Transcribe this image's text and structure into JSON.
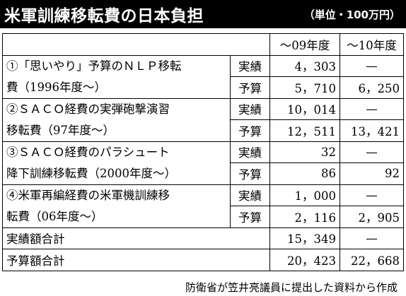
{
  "title": "米軍訓練移転費の日本負担",
  "unit": "（単位・100万円）",
  "columns": [
    "〜09年度",
    "〜10年度"
  ],
  "rows": [
    {
      "line1": "①「思いやり」予算のＮＬＰ移転",
      "line2": "費（1996年度〜）",
      "actual_label": "実績",
      "actual_09": "4，303",
      "actual_10": "—",
      "budget_label": "予算",
      "budget_09": "5，710",
      "budget_10": "6，250"
    },
    {
      "line1": "②ＳＡＣＯ経費の実弾砲撃演習",
      "line2": "移転費（97年度〜）",
      "actual_label": "実績",
      "actual_09": "10，014",
      "actual_10": "—",
      "budget_label": "予算",
      "budget_09": "12，511",
      "budget_10": "13，421"
    },
    {
      "line1": "③ＳＡＣＯ経費のパラシュート",
      "line2": "降下訓練移転費（2000年度〜）",
      "actual_label": "実績",
      "actual_09": "32",
      "actual_10": "—",
      "budget_label": "予算",
      "budget_09": "86",
      "budget_10": "92"
    },
    {
      "line1": "④米軍再編経費の米軍機訓練移",
      "line2": "転費（06年度〜）",
      "actual_label": "実績",
      "actual_09": "1，000",
      "actual_10": "—",
      "budget_label": "予算",
      "budget_09": "2，116",
      "budget_10": "2，905"
    }
  ],
  "totals": [
    {
      "label": "実績額合計",
      "v09": "15，349",
      "v10": "—"
    },
    {
      "label": "予算額合計",
      "v09": "20，423",
      "v10": "22，668"
    }
  ],
  "source": "防衛省が笠井亮議員に提出した資料から作成"
}
